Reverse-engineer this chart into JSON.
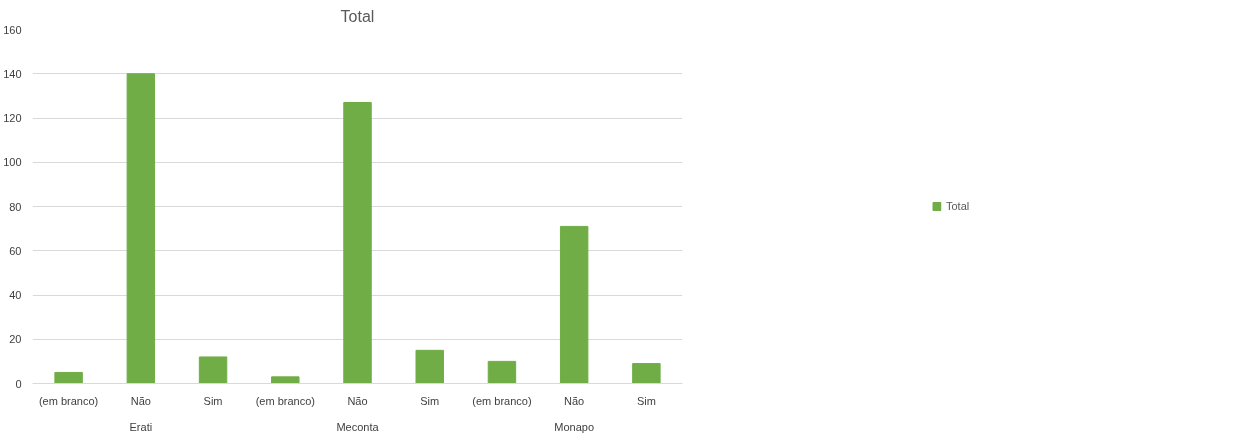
{
  "chart_data": {
    "type": "bar",
    "title": "Total",
    "categories": [
      "(em branco)",
      "Não",
      "Sim",
      "(em branco)",
      "Não",
      "Sim",
      "(em branco)",
      "Não",
      "Sim"
    ],
    "annotations": [
      "Erati",
      "Meconta",
      "Monapo"
    ],
    "series": [
      {
        "name": "Total",
        "color": "#70ad47",
        "values": [
          5,
          140,
          12,
          3,
          127,
          15,
          10,
          71,
          9
        ]
      }
    ],
    "ylim": [
      0,
      160
    ],
    "yticks": [
      0,
      20,
      40,
      60,
      80,
      100,
      120,
      140,
      160
    ],
    "grid": "y",
    "legend": "right"
  }
}
